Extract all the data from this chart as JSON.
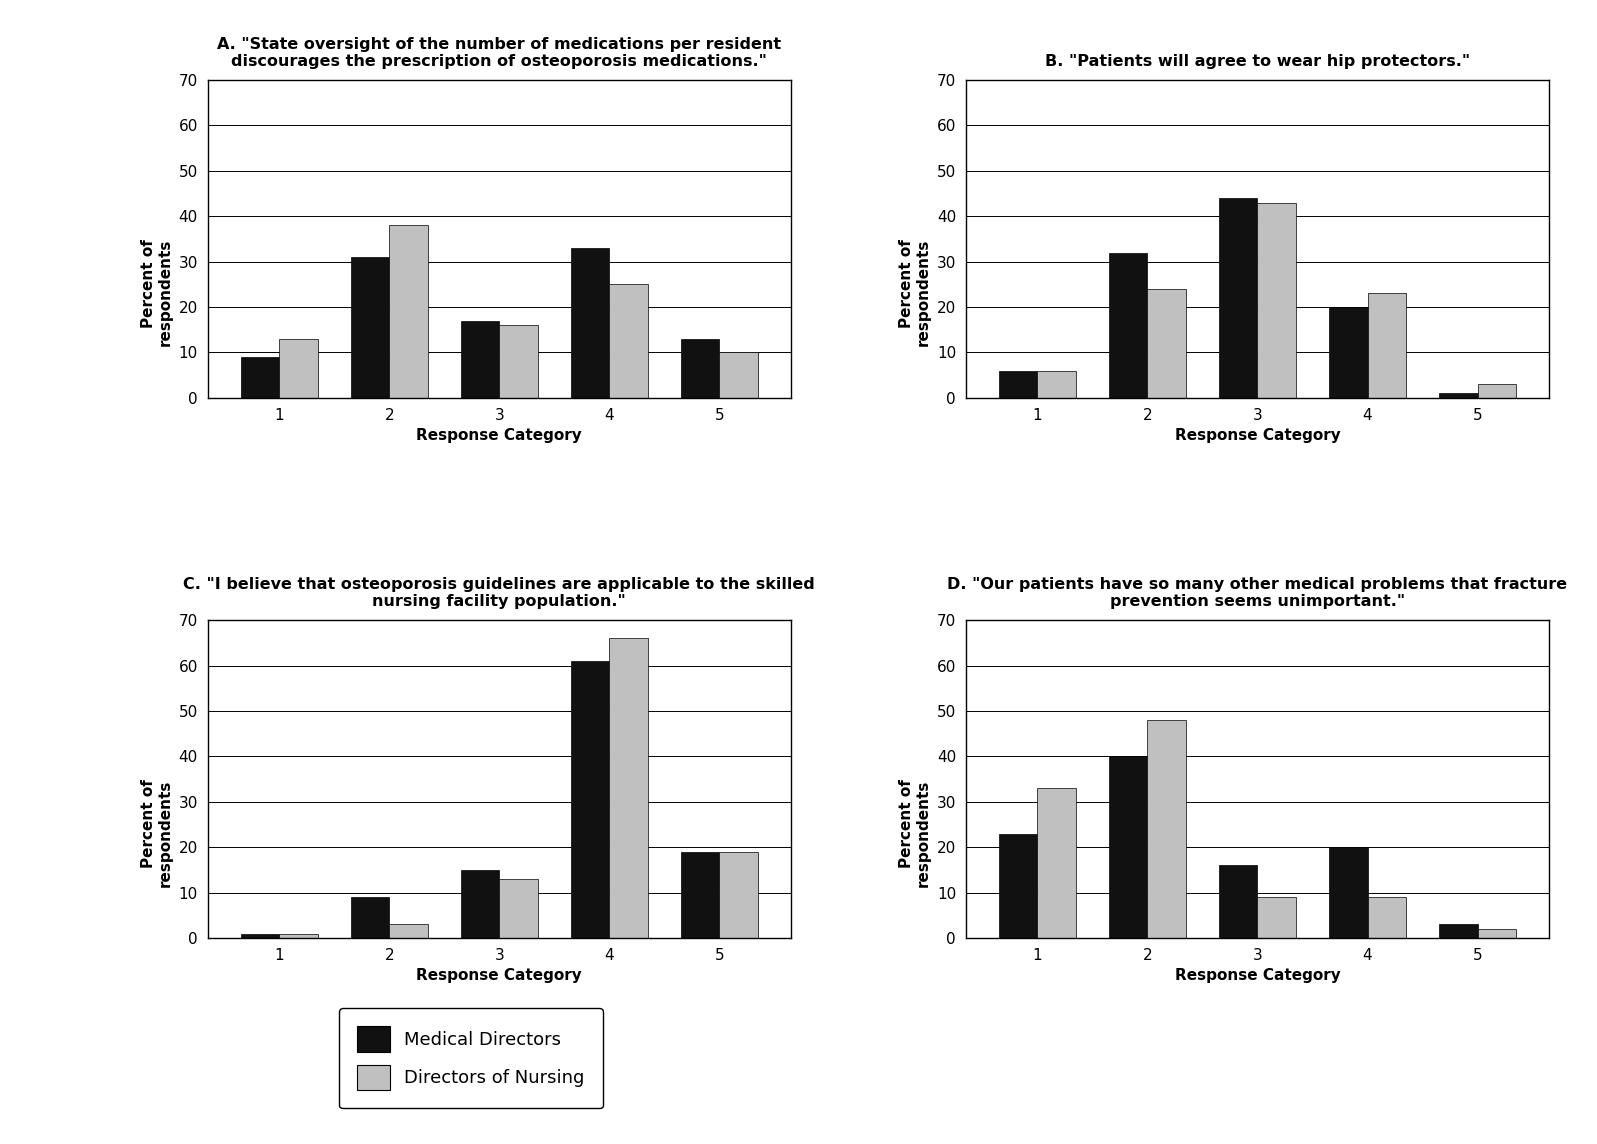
{
  "charts": [
    {
      "title_lines": [
        "A. \"State oversight of the number of medications per resident",
        "discourages the prescription of osteoporosis medications.\""
      ],
      "grid_row": 0,
      "grid_col": 0,
      "md_values": [
        9,
        31,
        17,
        33,
        13
      ],
      "don_values": [
        13,
        38,
        16,
        25,
        10
      ]
    },
    {
      "title_lines": [
        "B. \"Patients will agree to wear hip protectors.\""
      ],
      "grid_row": 0,
      "grid_col": 1,
      "md_values": [
        6,
        32,
        44,
        20,
        1
      ],
      "don_values": [
        6,
        24,
        43,
        23,
        3
      ]
    },
    {
      "title_lines": [
        "C. \"I believe that osteoporosis guidelines are applicable to the skilled",
        "nursing facility population.\""
      ],
      "grid_row": 1,
      "grid_col": 0,
      "md_values": [
        1,
        9,
        15,
        61,
        19
      ],
      "don_values": [
        1,
        3,
        13,
        66,
        19
      ]
    },
    {
      "title_lines": [
        "D. \"Our patients have so many other medical problems that fracture",
        "prevention seems unimportant.\""
      ],
      "grid_row": 1,
      "grid_col": 1,
      "md_values": [
        23,
        40,
        16,
        20,
        3
      ],
      "don_values": [
        33,
        48,
        9,
        9,
        2
      ]
    }
  ],
  "categories": [
    "1",
    "2",
    "3",
    "4",
    "5"
  ],
  "ylabel_line1": "Percent of",
  "ylabel_line2": "respondents",
  "xlabel": "Response Category",
  "ylim": [
    0,
    70
  ],
  "yticks": [
    0,
    10,
    20,
    30,
    40,
    50,
    60,
    70
  ],
  "md_color": "#111111",
  "don_color": "#c0c0c0",
  "md_label": "Medical Directors",
  "don_label": "Directors of Nursing",
  "bar_width": 0.35,
  "background_color": "#ffffff",
  "title_fontsize": 11.5,
  "axis_label_fontsize": 11,
  "tick_fontsize": 11,
  "legend_fontsize": 13
}
